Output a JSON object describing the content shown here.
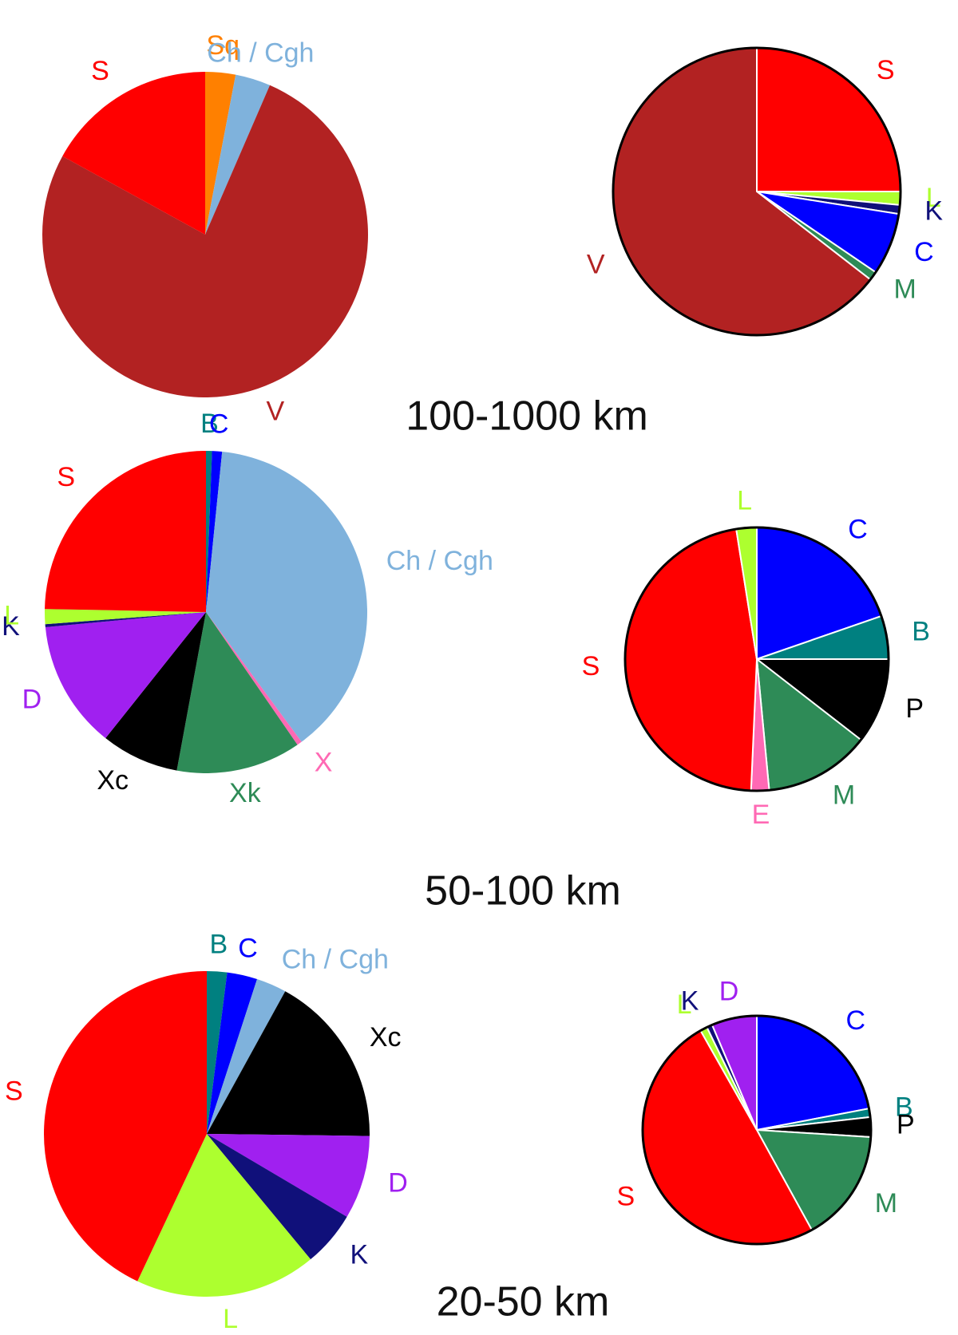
{
  "chart_data": [
    {
      "type": "pie",
      "categories": [
        "Sq",
        "Ch / Cgh",
        "V",
        "S"
      ],
      "values": [
        3,
        3.5,
        76.5,
        17
      ],
      "colors": [
        "#ff8000",
        "#7fb2dc",
        "#b22222",
        "#ff0000"
      ],
      "border": false
    },
    {
      "type": "pie",
      "categories": [
        "S",
        "L",
        "K",
        "C",
        "M",
        "V"
      ],
      "values": [
        25,
        1.5,
        1,
        7,
        1,
        64.5
      ],
      "colors": [
        "#ff0000",
        "#adff2f",
        "#10107a",
        "#0000ff",
        "#2e8b57",
        "#b22222"
      ],
      "border": true
    },
    {
      "type": "pie",
      "categories": [
        "B",
        "C",
        "Ch / Cgh",
        "X",
        "Xk",
        "Xc",
        "D",
        "K",
        "L",
        "S"
      ],
      "values": [
        0.6,
        1,
        38.3,
        0.5,
        12.5,
        7.8,
        12.8,
        0.3,
        1.5,
        24.7
      ],
      "colors": [
        "#008080",
        "#0000ff",
        "#7fb2dc",
        "#ff69b4",
        "#2e8b57",
        "#000000",
        "#a020f0",
        "#10107a",
        "#adff2f",
        "#ff0000"
      ],
      "border": false
    },
    {
      "type": "pie",
      "categories": [
        "C",
        "B",
        "P",
        "M",
        "E",
        "S",
        "L"
      ],
      "values": [
        19.7,
        5.3,
        10.5,
        13,
        2.2,
        46.8,
        2.5
      ],
      "colors": [
        "#0000ff",
        "#008080",
        "#000000",
        "#2e8b57",
        "#ff69b4",
        "#ff0000",
        "#adff2f"
      ],
      "border": true
    },
    {
      "type": "pie",
      "categories": [
        "B",
        "C",
        "Ch / Cgh",
        "Xc",
        "D",
        "K",
        "L",
        "S"
      ],
      "values": [
        2,
        3,
        3,
        17.2,
        8.3,
        5.5,
        18,
        43
      ],
      "colors": [
        "#008080",
        "#0000ff",
        "#7fb2dc",
        "#000000",
        "#a020f0",
        "#10107a",
        "#adff2f",
        "#ff0000"
      ],
      "border": false
    },
    {
      "type": "pie",
      "categories": [
        "C",
        "B",
        "P",
        "M",
        "S",
        "L",
        "K",
        "D"
      ],
      "values": [
        22,
        1.2,
        2.8,
        16,
        49.8,
        1,
        0.8,
        6.4
      ],
      "colors": [
        "#0000ff",
        "#008080",
        "#000000",
        "#2e8b57",
        "#ff0000",
        "#adff2f",
        "#10107a",
        "#a020f0"
      ],
      "border": true
    }
  ],
  "row_titles": [
    "100-1000 km",
    "50-100 km",
    "20-50 km"
  ]
}
